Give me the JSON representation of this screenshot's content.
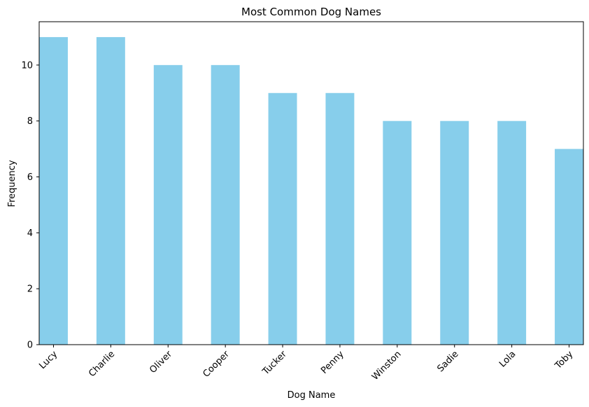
{
  "chart_data": {
    "type": "bar",
    "title": "Most Common Dog Names",
    "xlabel": "Dog Name",
    "ylabel": "Frequency",
    "categories": [
      "Lucy",
      "Charlie",
      "Oliver",
      "Cooper",
      "Tucker",
      "Penny",
      "Winston",
      "Sadie",
      "Lola",
      "Toby"
    ],
    "values": [
      11,
      11,
      10,
      10,
      9,
      9,
      8,
      8,
      8,
      7
    ],
    "ylim": [
      0,
      11.55
    ],
    "yticks": [
      0,
      2,
      4,
      6,
      8,
      10
    ],
    "x_tick_rotation_deg": 45,
    "grid": false,
    "legend": "none",
    "bar_color": "#87CEEB"
  }
}
